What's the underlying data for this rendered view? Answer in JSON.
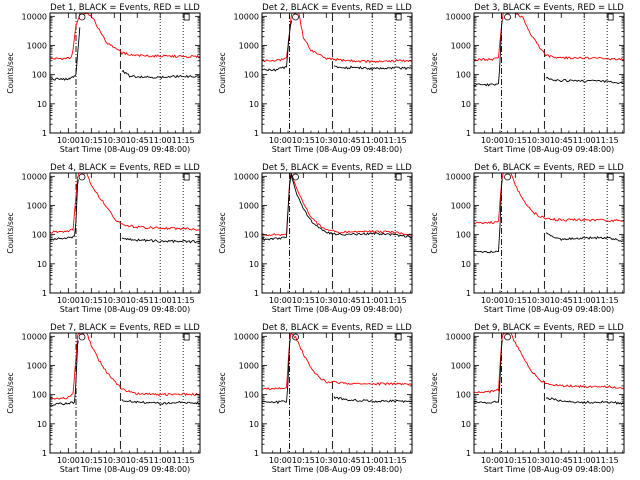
{
  "figure": {
    "panel_title_template": "Det {n}, BLACK = Events, RED = LLD",
    "ylabel": "Counts/sec",
    "xlabel": "Start Time (08-Aug-09 09:48:00)",
    "colors": {
      "events": "#000000",
      "lld": "#ff0000",
      "axes": "#000000"
    }
  },
  "chart_data": [
    {
      "type": "line",
      "detector": 1,
      "title": "Det 1, BLACK = Events, RED = LLD",
      "xlabel": "Start Time (08-Aug-09 09:48:00)",
      "ylabel": "Counts/sec",
      "xticks": [
        "10:00",
        "10:15",
        "10:30",
        "10:45",
        "11:00",
        "11:15"
      ],
      "yticks": [
        "1",
        "10",
        "100",
        "1000",
        "10000"
      ],
      "yscale": "log",
      "ylim": [
        1,
        13000
      ],
      "xlim": [
        "09:48",
        "11:26"
      ],
      "vlines": {
        "dash_dot": "10:05",
        "long_dash": "10:34",
        "dotted": [
          "11:00",
          "11:15"
        ]
      },
      "series": [
        {
          "name": "Events",
          "color": "#000000",
          "x": [
            "09:48",
            "10:00",
            "10:01",
            "10:02",
            "10:04",
            "10:05",
            "10:07",
            "10:08",
            "10:34",
            "10:35",
            "10:40",
            "11:00",
            "11:15",
            "11:26"
          ],
          "y": [
            70,
            70,
            75,
            80,
            85,
            100,
            2000,
            10000,
            null,
            140,
            90,
            80,
            90,
            85
          ]
        },
        {
          "name": "LLD",
          "color": "#ff0000",
          "x": [
            "09:48",
            "10:00",
            "10:02",
            "10:03",
            "10:05",
            "10:07",
            "10:08",
            "10:10",
            "10:13",
            "10:16",
            "10:20",
            "10:25",
            "10:30",
            "10:35",
            "10:45",
            "11:00",
            "11:15",
            "11:26"
          ],
          "y": [
            350,
            360,
            400,
            700,
            5000,
            10000,
            13000,
            13000,
            12000,
            9000,
            3500,
            1200,
            900,
            550,
            450,
            430,
            420,
            410
          ]
        }
      ]
    },
    {
      "type": "line",
      "detector": 2,
      "title": "Det 2, BLACK = Events, RED = LLD",
      "xlabel": "Start Time (08-Aug-09 09:48:00)",
      "ylabel": "Counts/sec",
      "xticks": [
        "10:00",
        "10:15",
        "10:30",
        "10:45",
        "11:00",
        "11:15"
      ],
      "yticks": [
        "1",
        "10",
        "100",
        "1000",
        "10000"
      ],
      "yscale": "log",
      "ylim": [
        1,
        13000
      ],
      "xlim": [
        "09:48",
        "11:26"
      ],
      "vlines": {
        "dash_dot": "10:06",
        "long_dash": "10:34",
        "dotted": [
          "11:00",
          "11:15"
        ]
      },
      "series": [
        {
          "name": "Events",
          "color": "#000000",
          "x": [
            "09:48",
            "09:55",
            "10:00",
            "10:04",
            "10:06",
            "10:08",
            "10:34",
            "10:35",
            "10:40",
            "10:50",
            "11:00",
            "11:15",
            "11:26"
          ],
          "y": [
            150,
            140,
            160,
            180,
            3000,
            12000,
            null,
            200,
            170,
            180,
            160,
            170,
            160
          ]
        },
        {
          "name": "LLD",
          "color": "#ff0000",
          "x": [
            "09:48",
            "10:00",
            "10:04",
            "10:06",
            "10:07",
            "10:08",
            "10:12",
            "10:15",
            "10:20",
            "10:30",
            "10:45",
            "11:00",
            "11:15",
            "11:26"
          ],
          "y": [
            300,
            320,
            350,
            3000,
            10000,
            13000,
            13000,
            2000,
            700,
            350,
            300,
            280,
            300,
            290
          ]
        }
      ]
    },
    {
      "type": "line",
      "detector": 3,
      "title": "Det 3, BLACK = Events, RED = LLD",
      "xlabel": "Start Time (08-Aug-09 09:48:00)",
      "ylabel": "Counts/sec",
      "xticks": [
        "10:00",
        "10:15",
        "10:30",
        "10:45",
        "11:00",
        "11:15"
      ],
      "yticks": [
        "1",
        "10",
        "100",
        "1000",
        "10000"
      ],
      "yscale": "log",
      "ylim": [
        1,
        13000
      ],
      "xlim": [
        "09:48",
        "11:26"
      ],
      "vlines": {
        "dash_dot": "10:06",
        "long_dash": "10:34",
        "dotted": [
          "11:00",
          "11:15"
        ]
      },
      "series": [
        {
          "name": "Events",
          "color": "#000000",
          "x": [
            "09:48",
            "10:00",
            "10:04",
            "10:05",
            "10:06",
            "10:07",
            "10:34",
            "10:35",
            "10:40",
            "11:00",
            "11:15",
            "11:26"
          ],
          "y": [
            45,
            45,
            50,
            300,
            5000,
            12000,
            null,
            80,
            65,
            60,
            60,
            50
          ]
        },
        {
          "name": "LLD",
          "color": "#ff0000",
          "x": [
            "09:48",
            "10:00",
            "10:04",
            "10:06",
            "10:07",
            "10:08",
            "10:15",
            "10:20",
            "10:25",
            "10:30",
            "10:35",
            "10:45",
            "11:00",
            "11:15",
            "11:26"
          ],
          "y": [
            320,
            340,
            360,
            5000,
            12000,
            13000,
            13000,
            9000,
            2500,
            1000,
            450,
            380,
            370,
            360,
            340
          ]
        }
      ]
    },
    {
      "type": "line",
      "detector": 4,
      "title": "Det 4, BLACK = Events, RED = LLD",
      "xlabel": "Start Time (08-Aug-09 09:48:00)",
      "ylabel": "Counts/sec",
      "xticks": [
        "10:00",
        "10:15",
        "10:30",
        "10:45",
        "11:00",
        "11:15"
      ],
      "yticks": [
        "1",
        "10",
        "100",
        "1000",
        "10000"
      ],
      "yscale": "log",
      "ylim": [
        1,
        13000
      ],
      "xlim": [
        "09:48",
        "11:26"
      ],
      "vlines": {
        "dash_dot": "10:05",
        "long_dash": "10:34",
        "dotted": [
          "11:00",
          "11:15"
        ]
      },
      "series": [
        {
          "name": "Events",
          "color": "#000000",
          "x": [
            "09:48",
            "10:00",
            "10:04",
            "10:05",
            "10:06",
            "10:07",
            "10:34",
            "10:35",
            "10:45",
            "11:00",
            "11:15",
            "11:26"
          ],
          "y": [
            65,
            80,
            85,
            300,
            5000,
            12000,
            null,
            70,
            65,
            60,
            60,
            55
          ]
        },
        {
          "name": "LLD",
          "color": "#ff0000",
          "x": [
            "09:48",
            "10:00",
            "10:03",
            "10:05",
            "10:06",
            "10:07",
            "10:12",
            "10:15",
            "10:20",
            "10:25",
            "10:30",
            "10:35",
            "10:45",
            "11:00",
            "11:15",
            "11:26"
          ],
          "y": [
            120,
            130,
            150,
            2000,
            10000,
            13000,
            13000,
            5000,
            2000,
            900,
            350,
            220,
            180,
            170,
            160,
            150
          ]
        }
      ]
    },
    {
      "type": "line",
      "detector": 5,
      "title": "Det 5, BLACK = Events, RED = LLD",
      "xlabel": "Start Time (08-Aug-09 09:48:00)",
      "ylabel": "Counts/sec",
      "xticks": [
        "10:00",
        "10:15",
        "10:30",
        "10:45",
        "11:00",
        "11:15"
      ],
      "yticks": [
        "1",
        "10",
        "100",
        "1000",
        "10000"
      ],
      "yscale": "log",
      "ylim": [
        1,
        13000
      ],
      "xlim": [
        "09:48",
        "11:26"
      ],
      "vlines": {
        "dash_dot": "10:06",
        "long_dash": "10:34",
        "dotted": [
          "11:00",
          "11:15"
        ]
      },
      "series": [
        {
          "name": "Events",
          "color": "#000000",
          "x": [
            "09:48",
            "10:00",
            "10:04",
            "10:06",
            "10:07",
            "10:10",
            "10:15",
            "10:20",
            "10:25",
            "10:30",
            "10:40",
            "11:00",
            "11:15",
            "11:26"
          ],
          "y": [
            70,
            75,
            80,
            5000,
            12000,
            3000,
            800,
            300,
            180,
            120,
            100,
            110,
            100,
            80
          ]
        },
        {
          "name": "LLD",
          "color": "#ff0000",
          "x": [
            "09:48",
            "10:00",
            "10:04",
            "10:06",
            "10:07",
            "10:10",
            "10:15",
            "10:20",
            "10:25",
            "10:30",
            "10:40",
            "11:00",
            "11:15",
            "11:26"
          ],
          "y": [
            100,
            100,
            110,
            6000,
            13000,
            5000,
            1200,
            400,
            220,
            150,
            120,
            130,
            120,
            100
          ]
        }
      ]
    },
    {
      "type": "line",
      "detector": 6,
      "title": "Det 6, BLACK = Events, RED = LLD",
      "xlabel": "Start Time (08-Aug-09 09:48:00)",
      "ylabel": "Counts/sec",
      "xticks": [
        "10:00",
        "10:15",
        "10:30",
        "10:45",
        "11:00",
        "11:15"
      ],
      "yticks": [
        "1",
        "10",
        "100",
        "1000",
        "10000"
      ],
      "yscale": "log",
      "ylim": [
        1,
        13000
      ],
      "xlim": [
        "09:48",
        "11:26"
      ],
      "vlines": {
        "dash_dot": "10:06",
        "long_dash": "10:34",
        "dotted": [
          "11:00",
          "11:15"
        ]
      },
      "series": [
        {
          "name": "Events",
          "color": "#000000",
          "x": [
            "09:48",
            "10:00",
            "10:04",
            "10:05",
            "10:06",
            "10:07",
            "10:34",
            "10:35",
            "10:45",
            "11:00",
            "11:15",
            "11:26"
          ],
          "y": [
            25,
            25,
            28,
            200,
            5000,
            12000,
            null,
            110,
            70,
            75,
            80,
            60
          ]
        },
        {
          "name": "LLD",
          "color": "#ff0000",
          "x": [
            "09:48",
            "10:00",
            "10:04",
            "10:06",
            "10:07",
            "10:08",
            "10:12",
            "10:15",
            "10:20",
            "10:25",
            "10:30",
            "10:35",
            "10:45",
            "11:00",
            "11:15",
            "11:26"
          ],
          "y": [
            250,
            260,
            300,
            6000,
            13000,
            13000,
            13000,
            5000,
            1500,
            700,
            450,
            350,
            320,
            320,
            310,
            300
          ]
        }
      ]
    },
    {
      "type": "line",
      "detector": 7,
      "title": "Det 7, BLACK = Events, RED = LLD",
      "xlabel": "Start Time (08-Aug-09 09:48:00)",
      "ylabel": "Counts/sec",
      "xticks": [
        "10:00",
        "10:15",
        "10:30",
        "10:45",
        "11:00",
        "11:15"
      ],
      "yticks": [
        "1",
        "10",
        "100",
        "1000",
        "10000"
      ],
      "yscale": "log",
      "ylim": [
        1,
        13000
      ],
      "xlim": [
        "09:48",
        "11:26"
      ],
      "vlines": {
        "dash_dot": "10:05",
        "long_dash": "10:34",
        "dotted": [
          "11:00",
          "11:15"
        ]
      },
      "series": [
        {
          "name": "Events",
          "color": "#000000",
          "x": [
            "09:48",
            "10:00",
            "10:04",
            "10:05",
            "10:06",
            "10:07",
            "10:34",
            "10:35",
            "10:45",
            "11:00",
            "11:15",
            "11:26"
          ],
          "y": [
            45,
            50,
            55,
            300,
            5000,
            12000,
            null,
            65,
            55,
            50,
            55,
            50
          ]
        },
        {
          "name": "LLD",
          "color": "#ff0000",
          "x": [
            "09:48",
            "10:00",
            "10:03",
            "10:05",
            "10:06",
            "10:07",
            "10:12",
            "10:15",
            "10:20",
            "10:25",
            "10:30",
            "10:35",
            "10:45",
            "11:00",
            "11:15",
            "11:26"
          ],
          "y": [
            70,
            80,
            100,
            2000,
            10000,
            13000,
            13000,
            5000,
            1500,
            600,
            300,
            150,
            110,
            100,
            105,
            100
          ]
        }
      ]
    },
    {
      "type": "line",
      "detector": 8,
      "title": "Det 8, BLACK = Events, RED = LLD",
      "xlabel": "Start Time (08-Aug-09 09:48:00)",
      "ylabel": "Counts/sec",
      "xticks": [
        "10:00",
        "10:15",
        "10:30",
        "10:45",
        "11:00",
        "11:15"
      ],
      "yticks": [
        "1",
        "10",
        "100",
        "1000",
        "10000"
      ],
      "yscale": "log",
      "ylim": [
        1,
        13000
      ],
      "xlim": [
        "09:48",
        "11:26"
      ],
      "vlines": {
        "dash_dot": "10:06",
        "long_dash": "10:34",
        "dotted": [
          "11:00",
          "11:15"
        ]
      },
      "series": [
        {
          "name": "Events",
          "color": "#000000",
          "x": [
            "09:48",
            "10:00",
            "10:04",
            "10:05",
            "10:06",
            "10:07",
            "10:34",
            "10:35",
            "10:45",
            "11:00",
            "11:15",
            "11:26"
          ],
          "y": [
            55,
            55,
            60,
            300,
            5000,
            12000,
            null,
            80,
            65,
            60,
            60,
            55
          ]
        },
        {
          "name": "LLD",
          "color": "#ff0000",
          "x": [
            "09:48",
            "10:00",
            "10:04",
            "10:06",
            "10:07",
            "10:10",
            "10:15",
            "10:20",
            "10:25",
            "10:30",
            "10:40",
            "11:00",
            "11:15",
            "11:26"
          ],
          "y": [
            160,
            170,
            180,
            6000,
            13000,
            9000,
            2500,
            800,
            400,
            280,
            250,
            230,
            240,
            220
          ]
        }
      ]
    },
    {
      "type": "line",
      "detector": 9,
      "title": "Det 9, BLACK = Events, RED = LLD",
      "xlabel": "Start Time (08-Aug-09 09:48:00)",
      "ylabel": "Counts/sec",
      "xticks": [
        "10:00",
        "10:15",
        "10:30",
        "10:45",
        "11:00",
        "11:15"
      ],
      "yticks": [
        "1",
        "10",
        "100",
        "1000",
        "10000"
      ],
      "yscale": "log",
      "ylim": [
        1,
        13000
      ],
      "xlim": [
        "09:48",
        "11:26"
      ],
      "vlines": {
        "dash_dot": "10:06",
        "long_dash": "10:34",
        "dotted": [
          "11:00",
          "11:15"
        ]
      },
      "series": [
        {
          "name": "Events",
          "color": "#000000",
          "x": [
            "09:48",
            "10:00",
            "10:04",
            "10:05",
            "10:06",
            "10:07",
            "10:34",
            "10:35",
            "10:45",
            "11:00",
            "11:15",
            "11:26"
          ],
          "y": [
            55,
            55,
            60,
            300,
            5000,
            12000,
            null,
            80,
            60,
            55,
            55,
            50
          ]
        },
        {
          "name": "LLD",
          "color": "#ff0000",
          "x": [
            "09:48",
            "10:00",
            "10:04",
            "10:06",
            "10:07",
            "10:08",
            "10:12",
            "10:15",
            "10:20",
            "10:25",
            "10:30",
            "10:35",
            "10:45",
            "11:00",
            "11:15",
            "11:26"
          ],
          "y": [
            120,
            130,
            150,
            6000,
            13000,
            13000,
            13000,
            6000,
            2000,
            700,
            350,
            250,
            200,
            190,
            190,
            170
          ]
        }
      ]
    }
  ]
}
